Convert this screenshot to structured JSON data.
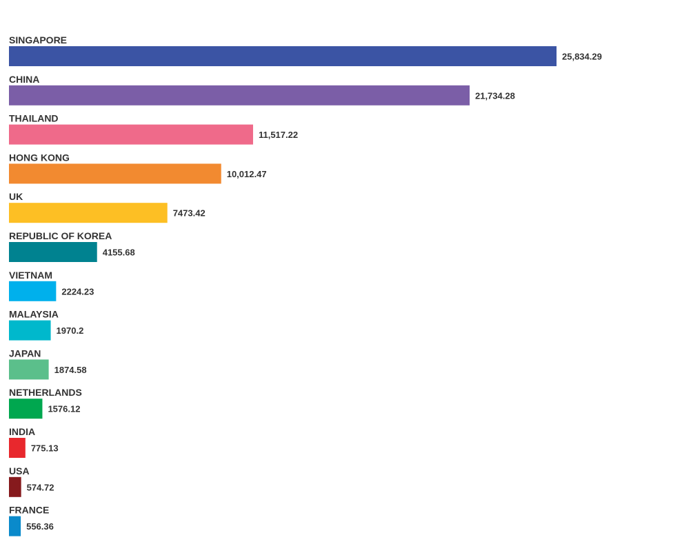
{
  "chart_data": {
    "type": "bar",
    "orientation": "horizontal",
    "title": "",
    "xlabel": "",
    "ylabel": "",
    "grid": false,
    "legend": "none",
    "xlim": [
      0,
      32000
    ],
    "categories": [
      "SINGAPORE",
      "CHINA",
      "THAILAND",
      "HONG KONG",
      "UK",
      "REPUBLIC OF KOREA",
      "VIETNAM",
      "MALAYSIA",
      "JAPAN",
      "NETHERLANDS",
      "INDIA",
      "USA",
      "FRANCE"
    ],
    "values": [
      25834.29,
      21734.28,
      11517.22,
      10012.47,
      7473.42,
      4155.68,
      2224.23,
      1970.2,
      1874.58,
      1576.12,
      775.13,
      574.72,
      556.36
    ],
    "value_labels": [
      "25,834.29",
      "21,734.28",
      "11,517.22",
      "10,012.47",
      "7473.42",
      "4155.68",
      "2224.23",
      "1970.2",
      "1874.58",
      "1576.12",
      "775.13",
      "574.72",
      "556.36"
    ],
    "colors": [
      "#3b54a4",
      "#7b5ea7",
      "#ef6a8a",
      "#f28a30",
      "#fdbf24",
      "#008290",
      "#00b0ec",
      "#00b8cc",
      "#5bbf8b",
      "#00a74f",
      "#e8282d",
      "#861a1d",
      "#0a8acb"
    ]
  }
}
